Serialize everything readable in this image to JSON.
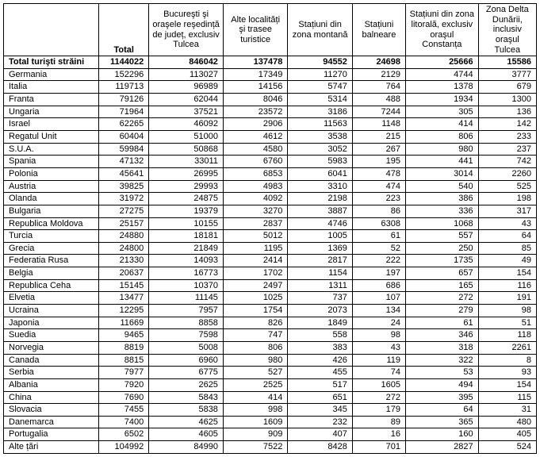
{
  "columns": {
    "c0": "Total",
    "c1": "Bucureşti şi oraşele reşedință de județ, exclusiv Tulcea",
    "c2": "Alte localități şi trasee turistice",
    "c3": "Stațiuni din zona montană",
    "c4": "Stațiuni balneare",
    "c5": "Stațiuni din zona litorală, exclusiv oraşul Constanța",
    "c6": "Zona Delta Dunării, inclusiv oraşul Tulcea"
  },
  "widths": {
    "label": "118",
    "total": "62",
    "c1": "92",
    "c2": "80",
    "c3": "80",
    "c4": "66",
    "c5": "90",
    "c6": "72"
  },
  "rows": [
    {
      "label": "Total turişti străini",
      "v": [
        "1144022",
        "846042",
        "137478",
        "94552",
        "24698",
        "25666",
        "15586"
      ],
      "total": true
    },
    {
      "label": "Germania",
      "v": [
        "152296",
        "113027",
        "17349",
        "11270",
        "2129",
        "4744",
        "3777"
      ]
    },
    {
      "label": "Italia",
      "v": [
        "119713",
        "96989",
        "14156",
        "5747",
        "764",
        "1378",
        "679"
      ]
    },
    {
      "label": "Franta",
      "v": [
        "79126",
        "62044",
        "8046",
        "5314",
        "488",
        "1934",
        "1300"
      ]
    },
    {
      "label": "Ungaria",
      "v": [
        "71964",
        "37521",
        "23572",
        "3186",
        "7244",
        "305",
        "136"
      ]
    },
    {
      "label": "Israel",
      "v": [
        "62265",
        "46092",
        "2906",
        "11563",
        "1148",
        "414",
        "142"
      ]
    },
    {
      "label": "Regatul Unit",
      "v": [
        "60404",
        "51000",
        "4612",
        "3538",
        "215",
        "806",
        "233"
      ]
    },
    {
      "label": "S.U.A.",
      "v": [
        "59984",
        "50868",
        "4580",
        "3052",
        "267",
        "980",
        "237"
      ]
    },
    {
      "label": "Spania",
      "v": [
        "47132",
        "33011",
        "6760",
        "5983",
        "195",
        "441",
        "742"
      ]
    },
    {
      "label": "Polonia",
      "v": [
        "45641",
        "26995",
        "6853",
        "6041",
        "478",
        "3014",
        "2260"
      ]
    },
    {
      "label": "Austria",
      "v": [
        "39825",
        "29993",
        "4983",
        "3310",
        "474",
        "540",
        "525"
      ]
    },
    {
      "label": "Olanda",
      "v": [
        "31972",
        "24875",
        "4092",
        "2198",
        "223",
        "386",
        "198"
      ]
    },
    {
      "label": "Bulgaria",
      "v": [
        "27275",
        "19379",
        "3270",
        "3887",
        "86",
        "336",
        "317"
      ]
    },
    {
      "label": "Republica Moldova",
      "v": [
        "25157",
        "10155",
        "2837",
        "4746",
        "6308",
        "1068",
        "43"
      ]
    },
    {
      "label": "Turcia",
      "v": [
        "24880",
        "18181",
        "5012",
        "1005",
        "61",
        "557",
        "64"
      ]
    },
    {
      "label": "Grecia",
      "v": [
        "24800",
        "21849",
        "1195",
        "1369",
        "52",
        "250",
        "85"
      ]
    },
    {
      "label": "Federatia Rusa",
      "v": [
        "21330",
        "14093",
        "2414",
        "2817",
        "222",
        "1735",
        "49"
      ]
    },
    {
      "label": "Belgia",
      "v": [
        "20637",
        "16773",
        "1702",
        "1154",
        "197",
        "657",
        "154"
      ]
    },
    {
      "label": "Republica Ceha",
      "v": [
        "15145",
        "10370",
        "2497",
        "1311",
        "686",
        "165",
        "116"
      ]
    },
    {
      "label": "Elvetia",
      "v": [
        "13477",
        "11145",
        "1025",
        "737",
        "107",
        "272",
        "191"
      ]
    },
    {
      "label": "Ucraina",
      "v": [
        "12295",
        "7957",
        "1754",
        "2073",
        "134",
        "279",
        "98"
      ]
    },
    {
      "label": "Japonia",
      "v": [
        "11669",
        "8858",
        "826",
        "1849",
        "24",
        "61",
        "51"
      ]
    },
    {
      "label": "Suedia",
      "v": [
        "9465",
        "7598",
        "747",
        "558",
        "98",
        "346",
        "118"
      ]
    },
    {
      "label": "Norvegia",
      "v": [
        "8819",
        "5008",
        "806",
        "383",
        "43",
        "318",
        "2261"
      ]
    },
    {
      "label": "Canada",
      "v": [
        "8815",
        "6960",
        "980",
        "426",
        "119",
        "322",
        "8"
      ]
    },
    {
      "label": "Serbia",
      "v": [
        "7977",
        "6775",
        "527",
        "455",
        "74",
        "53",
        "93"
      ]
    },
    {
      "label": "Albania",
      "v": [
        "7920",
        "2625",
        "2525",
        "517",
        "1605",
        "494",
        "154"
      ]
    },
    {
      "label": "China",
      "v": [
        "7690",
        "5843",
        "414",
        "651",
        "272",
        "395",
        "115"
      ]
    },
    {
      "label": "Slovacia",
      "v": [
        "7455",
        "5838",
        "998",
        "345",
        "179",
        "64",
        "31"
      ]
    },
    {
      "label": "Danemarca",
      "v": [
        "7400",
        "4625",
        "1609",
        "232",
        "89",
        "365",
        "480"
      ]
    },
    {
      "label": "Portugalia",
      "v": [
        "6502",
        "4605",
        "909",
        "407",
        "16",
        "160",
        "405"
      ]
    },
    {
      "label": "Alte țări",
      "v": [
        "104992",
        "84990",
        "7522",
        "8428",
        "701",
        "2827",
        "524"
      ]
    }
  ]
}
